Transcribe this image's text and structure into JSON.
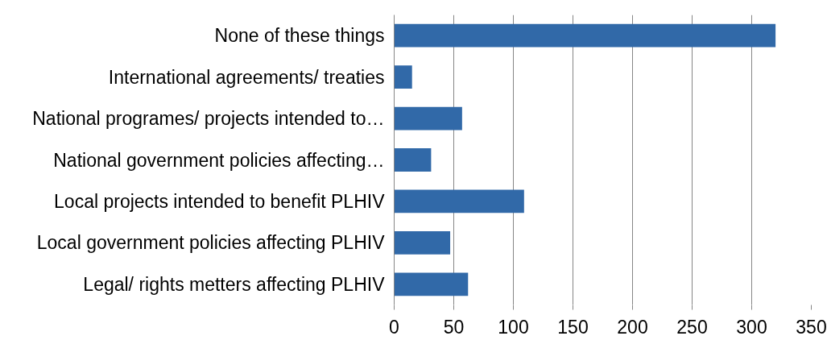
{
  "chart_data": {
    "type": "bar",
    "orientation": "horizontal",
    "categories": [
      "None of these things",
      "International agreements/ treaties",
      "National programes/ projects intended to…",
      "National government policies affecting…",
      "Local projects intended to benefit PLHIV",
      "Local government policies affecting PLHIV",
      "Legal/ rights metters affecting PLHIV"
    ],
    "values": [
      320,
      15,
      57,
      31,
      109,
      47,
      62
    ],
    "color": "#3169a8",
    "xlim": [
      0,
      350
    ],
    "xticks": [
      0,
      50,
      100,
      150,
      200,
      250,
      300,
      350
    ],
    "grid": "x"
  }
}
